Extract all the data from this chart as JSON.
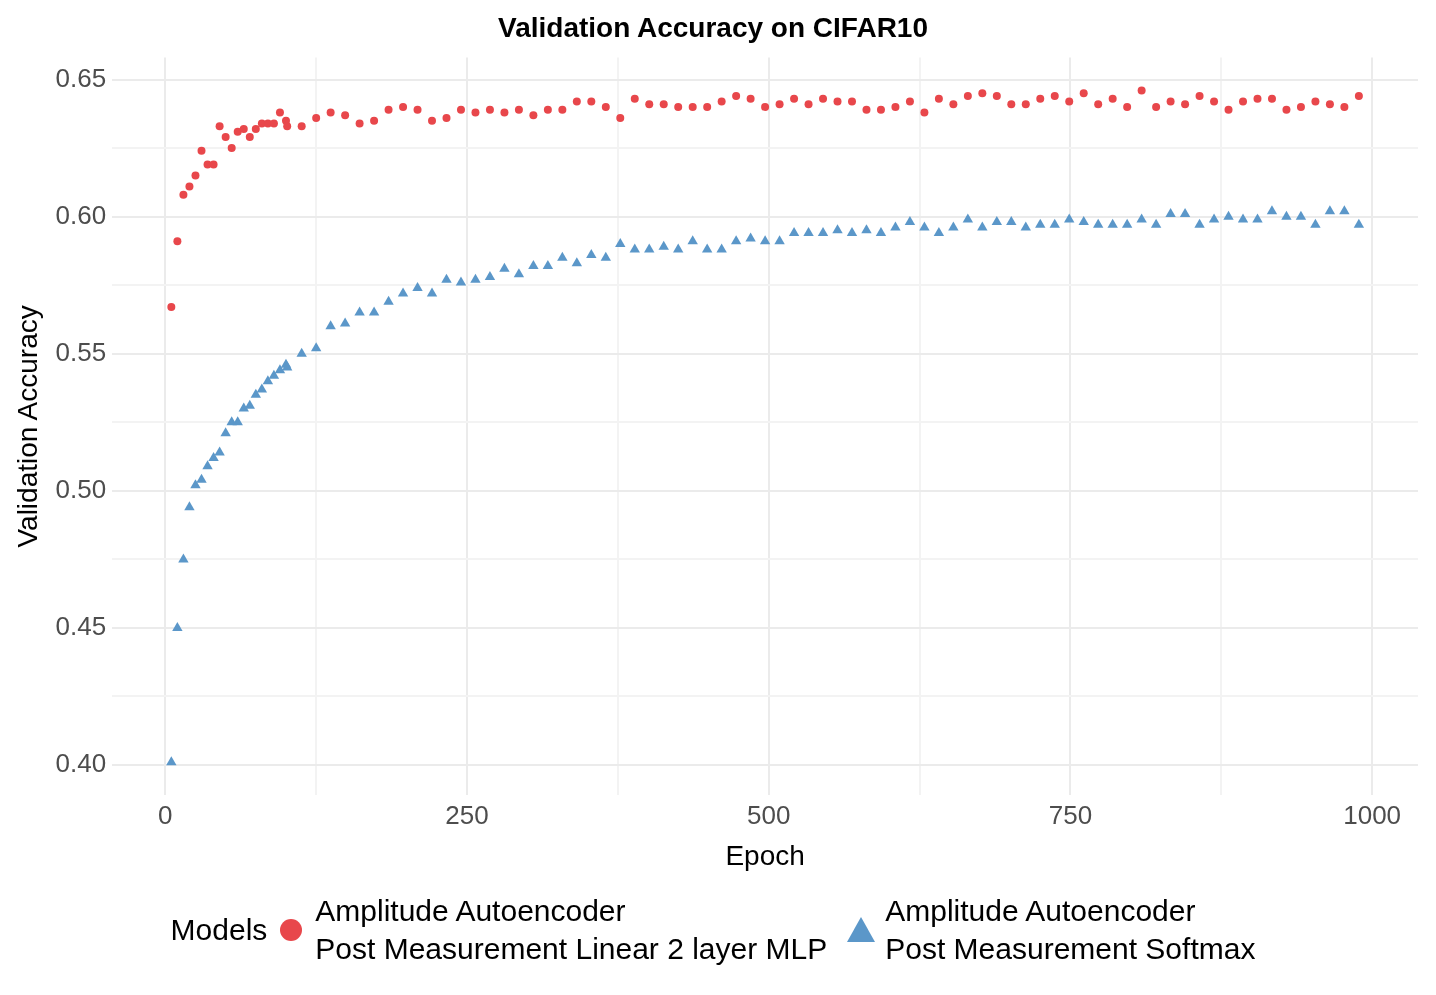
{
  "chart_data": {
    "type": "scatter",
    "title": "Validation Accuracy on CIFAR10",
    "xlabel": "Epoch",
    "ylabel": "Validation Accuracy",
    "legend_title": "Models",
    "legend": "bottom",
    "grid": true,
    "x": [
      5,
      10,
      15,
      20,
      25,
      30,
      35,
      40,
      45,
      50,
      55,
      60,
      65,
      70,
      75,
      80,
      85,
      90,
      95,
      100,
      101,
      113,
      125,
      137,
      149,
      161,
      173,
      185,
      197,
      209,
      221,
      233,
      245,
      257,
      269,
      281,
      293,
      305,
      317,
      329,
      341,
      353,
      365,
      377,
      389,
      401,
      413,
      425,
      437,
      449,
      461,
      473,
      485,
      497,
      509,
      521,
      533,
      545,
      557,
      569,
      581,
      593,
      605,
      617,
      629,
      641,
      653,
      665,
      677,
      689,
      701,
      713,
      725,
      737,
      749,
      761,
      773,
      785,
      797,
      809,
      821,
      833,
      845,
      857,
      869,
      881,
      893,
      905,
      917,
      929,
      941,
      953,
      965,
      977,
      989
    ],
    "xlim": [
      -44,
      1038
    ],
    "xticks": [
      0,
      {
        "value": 125,
        "label": null
      },
      250,
      {
        "value": 375,
        "label": null
      },
      500,
      {
        "value": 625,
        "label": null
      },
      750,
      {
        "value": 875,
        "label": null
      },
      1000
    ],
    "ylim": [
      0.389,
      0.658
    ],
    "yticks": [
      {
        "value": 0.4,
        "label": "0.40"
      },
      {
        "value": 0.425,
        "label": null
      },
      0.45,
      {
        "value": 0.475,
        "label": null
      },
      {
        "value": 0.5,
        "label": "0.50"
      },
      {
        "value": 0.525,
        "label": null
      },
      0.55,
      {
        "value": 0.575,
        "label": null
      },
      {
        "value": 0.6,
        "label": "0.60"
      },
      {
        "value": 0.625,
        "label": null
      },
      0.65
    ],
    "series": [
      {
        "name": "Amplitude Autoencoder\nPost Measurement Linear 2 layer MLP",
        "color": "#e8474b",
        "marker": "circle",
        "values": [
          0.567,
          0.591,
          0.608,
          0.611,
          0.615,
          0.624,
          0.619,
          0.619,
          0.633,
          0.629,
          0.625,
          0.631,
          0.632,
          0.629,
          0.632,
          0.634,
          0.634,
          0.634,
          0.638,
          0.635,
          0.633,
          0.633,
          0.636,
          0.638,
          0.637,
          0.634,
          0.635,
          0.639,
          0.64,
          0.639,
          0.635,
          0.636,
          0.639,
          0.638,
          0.639,
          0.638,
          0.639,
          0.637,
          0.639,
          0.639,
          0.642,
          0.642,
          0.64,
          0.636,
          0.643,
          0.641,
          0.641,
          0.64,
          0.64,
          0.64,
          0.642,
          0.644,
          0.643,
          0.64,
          0.641,
          0.643,
          0.641,
          0.643,
          0.642,
          0.642,
          0.639,
          0.639,
          0.64,
          0.642,
          0.638,
          0.643,
          0.641,
          0.644,
          0.645,
          0.644,
          0.641,
          0.641,
          0.643,
          0.644,
          0.642,
          0.645,
          0.641,
          0.643,
          0.64,
          0.646,
          0.64,
          0.642,
          0.641,
          0.644,
          0.642,
          0.639,
          0.642,
          0.643,
          0.643,
          0.639,
          0.64,
          0.642,
          0.641,
          0.64,
          0.644
        ]
      },
      {
        "name": "Amplitude Autoencoder\nPost Measurement Softmax",
        "color": "#5b97c9",
        "marker": "triangle",
        "values": [
          0.401,
          0.45,
          0.475,
          0.494,
          0.502,
          0.504,
          0.509,
          0.512,
          0.514,
          0.521,
          0.525,
          0.525,
          0.53,
          0.531,
          0.535,
          0.537,
          0.54,
          0.542,
          0.544,
          0.546,
          0.545,
          0.55,
          0.552,
          0.56,
          0.561,
          0.565,
          0.565,
          0.569,
          0.572,
          0.574,
          0.572,
          0.577,
          0.576,
          0.577,
          0.578,
          0.581,
          0.579,
          0.582,
          0.582,
          0.585,
          0.583,
          0.586,
          0.585,
          0.59,
          0.588,
          0.588,
          0.589,
          0.588,
          0.591,
          0.588,
          0.588,
          0.591,
          0.592,
          0.591,
          0.591,
          0.594,
          0.594,
          0.594,
          0.595,
          0.594,
          0.595,
          0.594,
          0.596,
          0.598,
          0.596,
          0.594,
          0.596,
          0.599,
          0.596,
          0.598,
          0.598,
          0.596,
          0.597,
          0.597,
          0.599,
          0.598,
          0.597,
          0.597,
          0.597,
          0.599,
          0.597,
          0.601,
          0.601,
          0.597,
          0.599,
          0.6,
          0.599,
          0.599,
          0.602,
          0.6,
          0.6,
          0.597,
          0.602,
          0.602,
          0.597
        ]
      }
    ]
  }
}
